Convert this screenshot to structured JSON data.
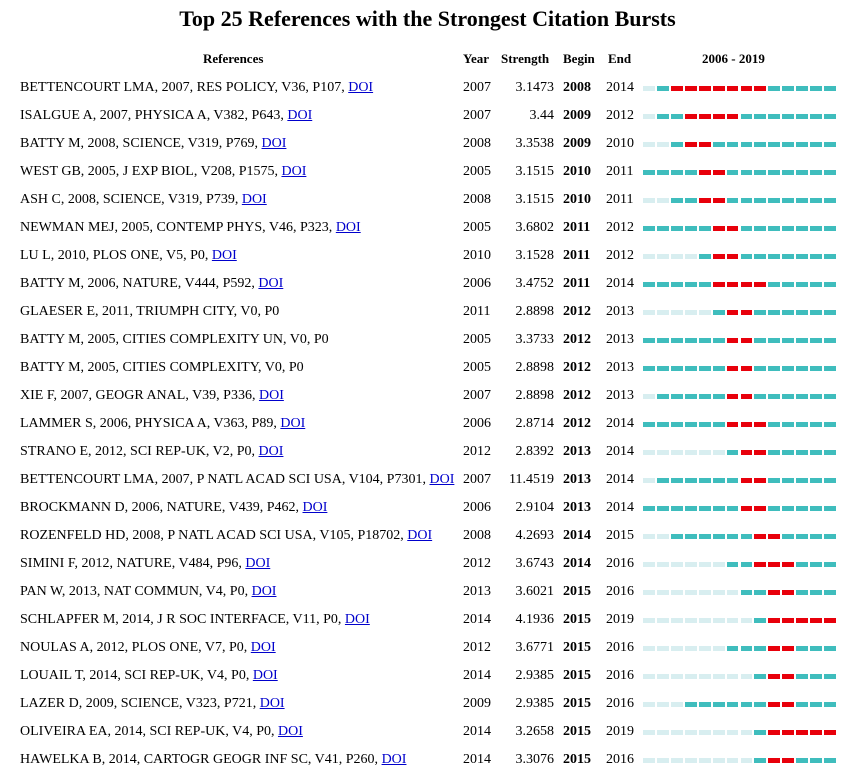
{
  "title": "Top 25 References with the Strongest Citation Bursts",
  "headers": {
    "references": "References",
    "year": "Year",
    "strength": "Strength",
    "begin": "Begin",
    "end": "End",
    "range": "2006 - 2019"
  },
  "colors": {
    "burst": "#e8000b",
    "active": "#3fbdbd",
    "inactive": "#d8eef0"
  },
  "chart_data": {
    "type": "table",
    "title": "Top 25 References with the Strongest Citation Bursts",
    "timeline": {
      "start": 2006,
      "end": 2019
    },
    "rows": [
      {
        "ref": "BETTENCOURT LMA, 2007, RES POLICY, V36, P107,",
        "doi": "DOI",
        "year": "2007",
        "strength": "3.1473",
        "begin": "2008",
        "end": "2014"
      },
      {
        "ref": "ISALGUE A, 2007, PHYSICA A, V382, P643,",
        "doi": "DOI",
        "year": "2007",
        "strength": "3.44",
        "begin": "2009",
        "end": "2012"
      },
      {
        "ref": "BATTY M, 2008, SCIENCE, V319, P769,",
        "doi": "DOI",
        "year": "2008",
        "strength": "3.3538",
        "begin": "2009",
        "end": "2010"
      },
      {
        "ref": "WEST GB, 2005, J EXP BIOL, V208, P1575,",
        "doi": "DOI",
        "year": "2005",
        "strength": "3.1515",
        "begin": "2010",
        "end": "2011"
      },
      {
        "ref": "ASH C, 2008, SCIENCE, V319, P739,",
        "doi": "DOI",
        "year": "2008",
        "strength": "3.1515",
        "begin": "2010",
        "end": "2011"
      },
      {
        "ref": "NEWMAN MEJ, 2005, CONTEMP PHYS, V46, P323,",
        "doi": "DOI",
        "year": "2005",
        "strength": "3.6802",
        "begin": "2011",
        "end": "2012"
      },
      {
        "ref": "LU L, 2010, PLOS ONE, V5, P0,",
        "doi": "DOI",
        "year": "2010",
        "strength": "3.1528",
        "begin": "2011",
        "end": "2012"
      },
      {
        "ref": "BATTY M, 2006, NATURE, V444, P592,",
        "doi": "DOI",
        "year": "2006",
        "strength": "3.4752",
        "begin": "2011",
        "end": "2014"
      },
      {
        "ref": "GLAESER E, 2011, TRIUMPH CITY, V0, P0",
        "doi": "",
        "year": "2011",
        "strength": "2.8898",
        "begin": "2012",
        "end": "2013"
      },
      {
        "ref": "BATTY M, 2005, CITIES COMPLEXITY UN, V0, P0",
        "doi": "",
        "year": "2005",
        "strength": "3.3733",
        "begin": "2012",
        "end": "2013"
      },
      {
        "ref": "BATTY M, 2005, CITIES COMPLEXITY, V0, P0",
        "doi": "",
        "year": "2005",
        "strength": "2.8898",
        "begin": "2012",
        "end": "2013"
      },
      {
        "ref": "XIE F, 2007, GEOGR ANAL, V39, P336,",
        "doi": "DOI",
        "year": "2007",
        "strength": "2.8898",
        "begin": "2012",
        "end": "2013"
      },
      {
        "ref": "LAMMER S, 2006, PHYSICA A, V363, P89,",
        "doi": "DOI",
        "year": "2006",
        "strength": "2.8714",
        "begin": "2012",
        "end": "2014"
      },
      {
        "ref": "STRANO E, 2012, SCI REP-UK, V2, P0,",
        "doi": "DOI",
        "year": "2012",
        "strength": "2.8392",
        "begin": "2013",
        "end": "2014"
      },
      {
        "ref": "BETTENCOURT LMA, 2007, P NATL ACAD SCI USA, V104, P7301,",
        "doi": "DOI",
        "year": "2007",
        "strength": "11.4519",
        "begin": "2013",
        "end": "2014"
      },
      {
        "ref": "BROCKMANN D, 2006, NATURE, V439, P462,",
        "doi": "DOI",
        "year": "2006",
        "strength": "2.9104",
        "begin": "2013",
        "end": "2014"
      },
      {
        "ref": "ROZENFELD HD, 2008, P NATL ACAD SCI USA, V105, P18702,",
        "doi": "DOI",
        "year": "2008",
        "strength": "4.2693",
        "begin": "2014",
        "end": "2015"
      },
      {
        "ref": "SIMINI F, 2012, NATURE, V484, P96,",
        "doi": "DOI",
        "year": "2012",
        "strength": "3.6743",
        "begin": "2014",
        "end": "2016"
      },
      {
        "ref": "PAN W, 2013, NAT COMMUN, V4, P0,",
        "doi": "DOI",
        "year": "2013",
        "strength": "3.6021",
        "begin": "2015",
        "end": "2016"
      },
      {
        "ref": "SCHLAPFER M, 2014, J R SOC INTERFACE, V11, P0,",
        "doi": "DOI",
        "year": "2014",
        "strength": "4.1936",
        "begin": "2015",
        "end": "2019"
      },
      {
        "ref": "NOULAS A, 2012, PLOS ONE, V7, P0,",
        "doi": "DOI",
        "year": "2012",
        "strength": "3.6771",
        "begin": "2015",
        "end": "2016"
      },
      {
        "ref": "LOUAIL T, 2014, SCI REP-UK, V4, P0,",
        "doi": "DOI",
        "year": "2014",
        "strength": "2.9385",
        "begin": "2015",
        "end": "2016"
      },
      {
        "ref": "LAZER D, 2009, SCIENCE, V323, P721,",
        "doi": "DOI",
        "year": "2009",
        "strength": "2.9385",
        "begin": "2015",
        "end": "2016"
      },
      {
        "ref": "OLIVEIRA EA, 2014, SCI REP-UK, V4, P0,",
        "doi": "DOI",
        "year": "2014",
        "strength": "3.2658",
        "begin": "2015",
        "end": "2019"
      },
      {
        "ref": "HAWELKA B, 2014, CARTOGR GEOGR INF SC, V41, P260,",
        "doi": "DOI",
        "year": "2014",
        "strength": "3.3076",
        "begin": "2015",
        "end": "2016"
      }
    ]
  }
}
